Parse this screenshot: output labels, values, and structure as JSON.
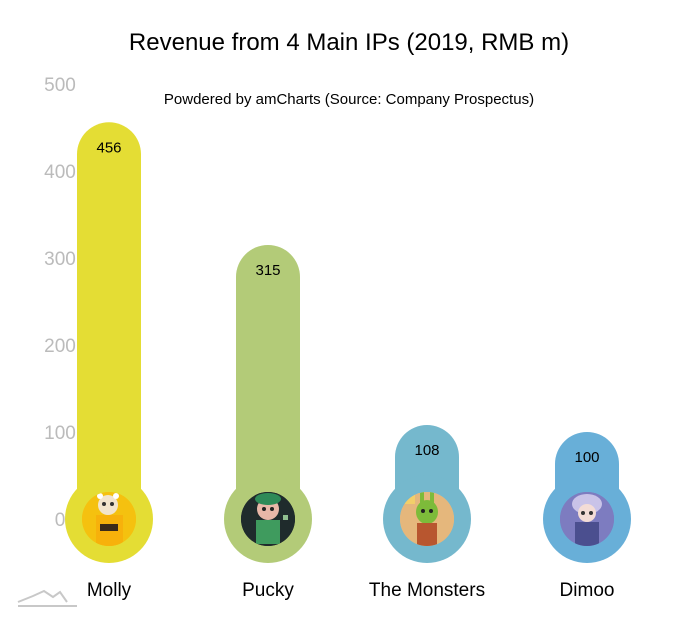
{
  "chart_data": {
    "type": "bar",
    "title": "Revenue from 4 Main IPs (2019, RMB m)",
    "subtitle": "Powdered by amCharts (Source: Company Prospectus)",
    "categories": [
      "Molly",
      "Pucky",
      "The Monsters",
      "Dimoo"
    ],
    "values": [
      456,
      315,
      108,
      100
    ],
    "data_labels": [
      "456",
      "315",
      "108",
      "100"
    ],
    "y_ticks": [
      0,
      100,
      200,
      300,
      400,
      500
    ],
    "y_tick_labels": [
      "0",
      "100",
      "200",
      "300",
      "400",
      "500"
    ],
    "ylim": [
      0,
      500
    ],
    "xlabel": "",
    "ylabel": "",
    "grid": false,
    "legend": "none",
    "colors": [
      "#e4dd34",
      "#b3cb78",
      "#75b8cd",
      "#68afd8"
    ],
    "bullet_images": [
      "molly-figure-icon",
      "pucky-figure-icon",
      "the-monsters-figure-icon",
      "dimoo-figure-icon"
    ]
  }
}
